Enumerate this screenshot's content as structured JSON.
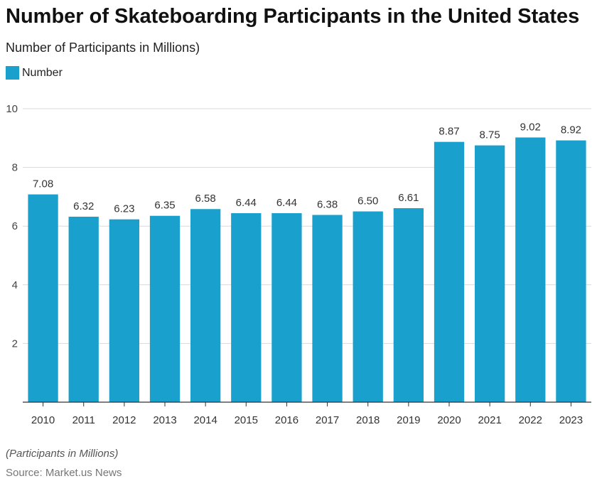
{
  "title": "Number of Skateboarding Participants in the United States",
  "subtitle": "Number of Participants in Millions)",
  "legend": {
    "label": "Number",
    "color": "#1aa0cc"
  },
  "footer": {
    "note": "(Participants in Millions)",
    "source": "Source: Market.us News"
  },
  "chart_data": {
    "type": "bar",
    "categories": [
      "2010",
      "2011",
      "2012",
      "2013",
      "2014",
      "2015",
      "2016",
      "2017",
      "2018",
      "2019",
      "2020",
      "2021",
      "2022",
      "2023"
    ],
    "series": [
      {
        "name": "Number",
        "color": "#1aa0cc",
        "values": [
          7.08,
          6.32,
          6.23,
          6.35,
          6.58,
          6.44,
          6.44,
          6.38,
          6.5,
          6.61,
          8.87,
          8.75,
          9.02,
          8.92
        ],
        "labels": [
          "7.08",
          "6.32",
          "6.23",
          "6.35",
          "6.58",
          "6.44",
          "6.44",
          "6.38",
          "6.50",
          "6.61",
          "8.87",
          "8.75",
          "9.02",
          "8.92"
        ]
      }
    ],
    "y_ticks": [
      "2",
      "4",
      "6",
      "8",
      "10"
    ],
    "ylim": [
      0,
      10
    ],
    "grid": true,
    "legend_position": "top-left"
  }
}
